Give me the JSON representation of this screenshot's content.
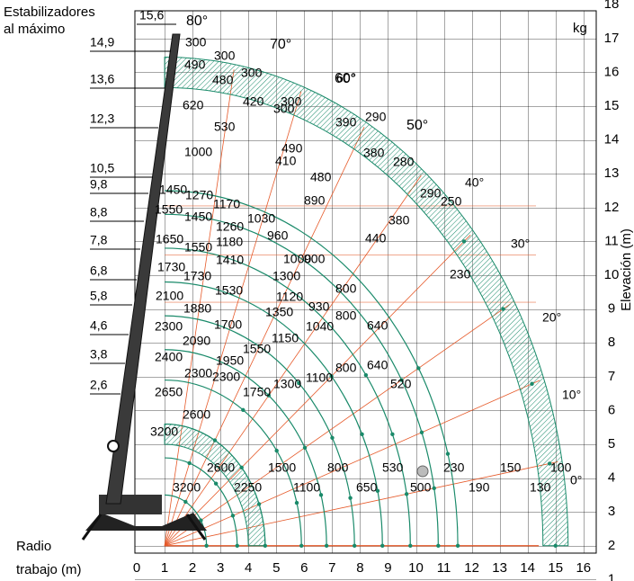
{
  "header": {
    "line1": "Estabilizadores",
    "line2": "al máximo"
  },
  "units": {
    "load": "kg"
  },
  "x_axis": {
    "label_line1": "Radio",
    "label_line2": "trabajo (m)",
    "ticks": [
      "0",
      "1",
      "2",
      "3",
      "4",
      "5",
      "6",
      "7",
      "8",
      "9",
      "10",
      "11",
      "12",
      "13",
      "14",
      "15",
      "16"
    ]
  },
  "y_axis": {
    "label": "Elevación (m)",
    "ticks": [
      "1",
      "2",
      "3",
      "4",
      "5",
      "6",
      "7",
      "8",
      "9",
      "10",
      "11",
      "12",
      "13",
      "14",
      "15",
      "16",
      "17",
      "18"
    ]
  },
  "boom_lengths": [
    "15,6",
    "14,9",
    "13,6",
    "12,3",
    "10,5",
    "9,8",
    "8,8",
    "7,8",
    "6,8",
    "5,8",
    "4,6",
    "3,8",
    "2,6"
  ],
  "angles": [
    "80°",
    "70°",
    "60°",
    "50°",
    "40°",
    "30°",
    "20°",
    "10°",
    "0°"
  ],
  "load_labels": [
    "300",
    "300",
    "490",
    "480",
    "300",
    "620",
    "420",
    "300",
    "530",
    "1000",
    "60°",
    "300",
    "390",
    "290",
    "490",
    "380",
    "410",
    "480",
    "280",
    "890",
    "1450",
    "1270",
    "1170",
    "1550",
    "1450",
    "1260",
    "1030",
    "1650",
    "1550",
    "1180",
    "960",
    "1410",
    "1000",
    "900",
    "1730",
    "1730",
    "1300",
    "1530",
    "2100",
    "1880",
    "1120",
    "930",
    "800",
    "1700",
    "1350",
    "1040",
    "800",
    "640",
    "2300",
    "2090",
    "1550",
    "1150",
    "2400",
    "1950",
    "800",
    "640",
    "2300",
    "1300",
    "1100",
    "2650",
    "2300",
    "1750",
    "2600",
    "3200",
    "2600",
    "1500",
    "800",
    "530",
    "230",
    "150",
    "100",
    "3200",
    "2250",
    "1100",
    "650",
    "500",
    "190",
    "130",
    "290",
    "250",
    "380",
    "440",
    "230",
    "520"
  ],
  "colors": {
    "arc": "#1a8a6a",
    "hatch": "#1a8a6a",
    "ray": "#e65a2a",
    "grid": "#000000"
  }
}
